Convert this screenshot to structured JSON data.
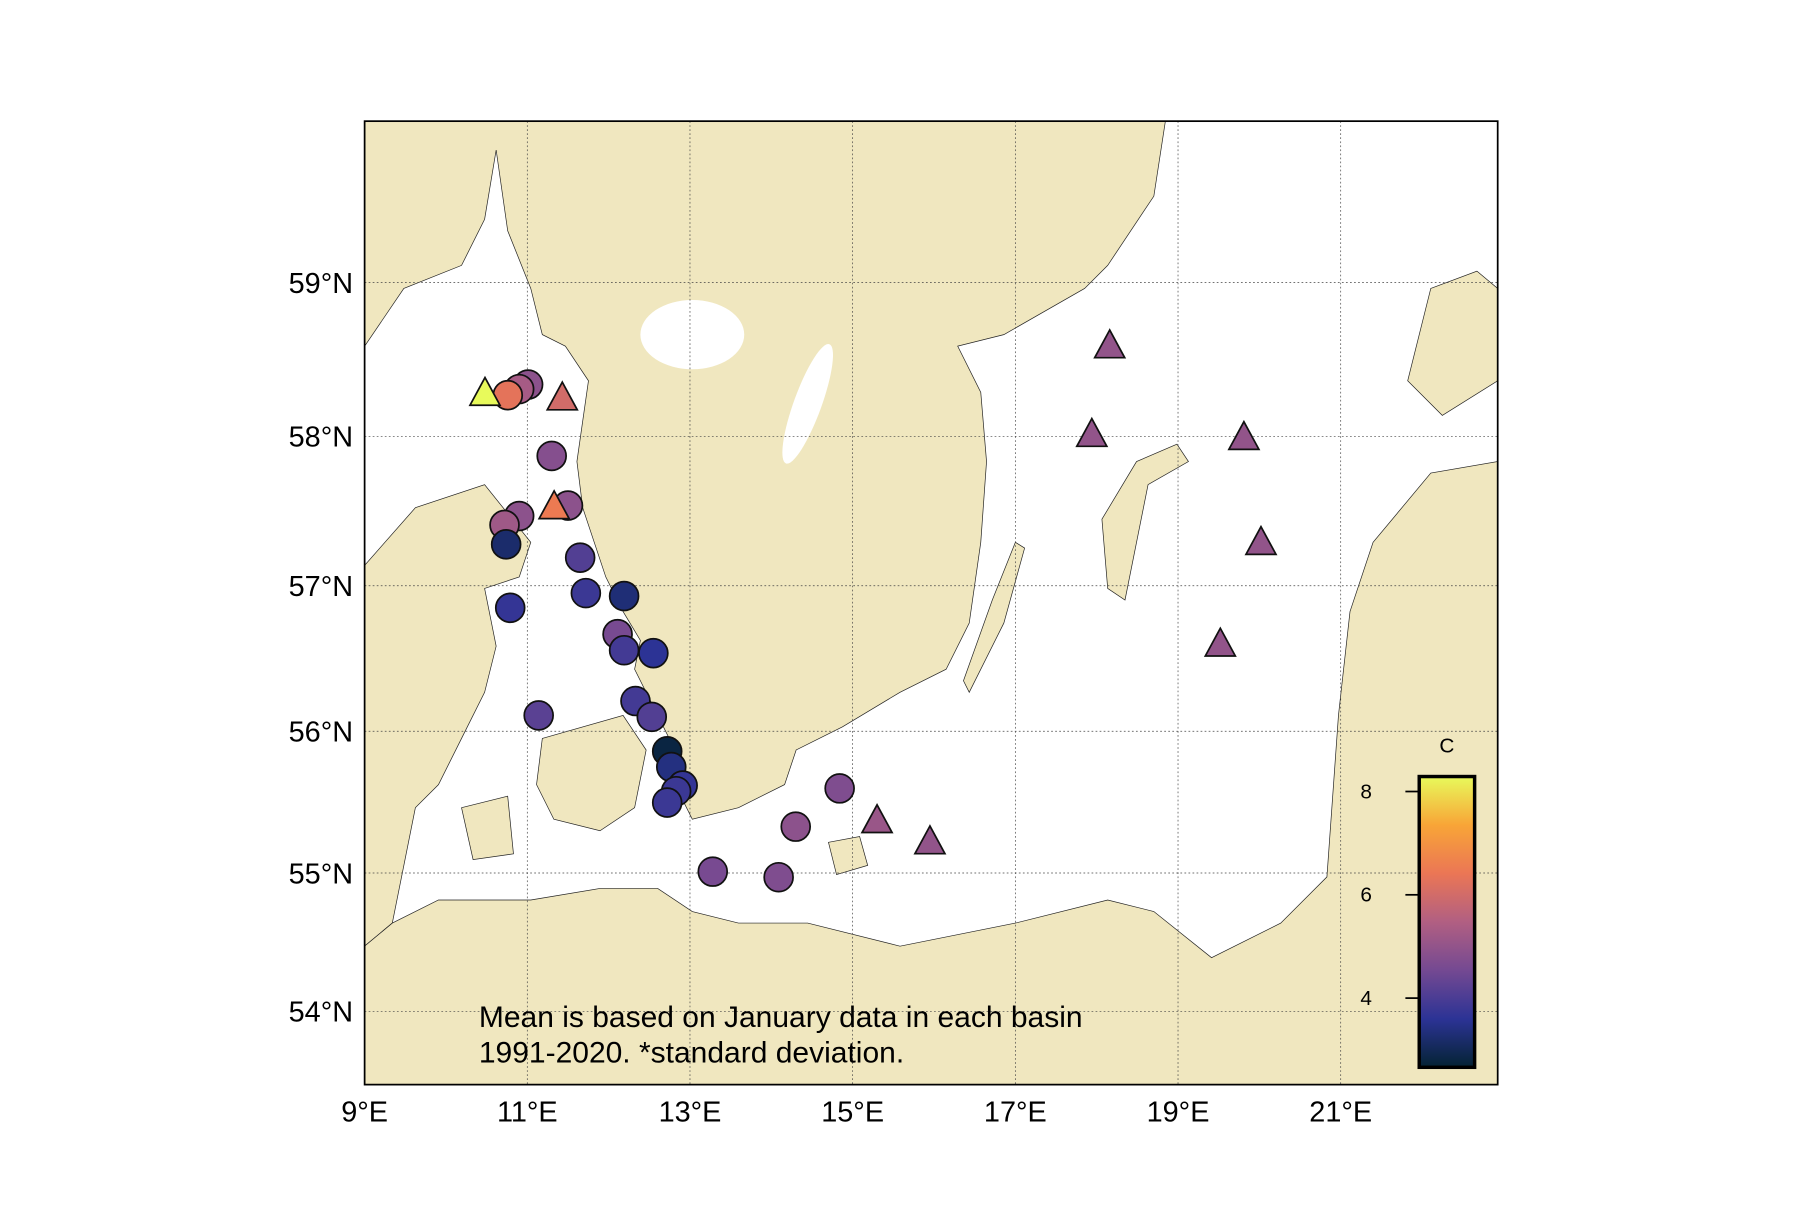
{
  "chart_data": {
    "type": "scatter",
    "projection": "mercator",
    "xlim": [
      9,
      22.93
    ],
    "ylim": [
      53.46,
      60.02
    ],
    "xticks": [
      {
        "value": 9,
        "label": "9°E"
      },
      {
        "value": 11,
        "label": "11°E"
      },
      {
        "value": 13,
        "label": "13°E"
      },
      {
        "value": 15,
        "label": "15°E"
      },
      {
        "value": 17,
        "label": "17°E"
      },
      {
        "value": 19,
        "label": "19°E"
      },
      {
        "value": 21,
        "label": "21°E"
      }
    ],
    "yticks": [
      {
        "value": 54,
        "label": "54°N"
      },
      {
        "value": 55,
        "label": "55°N"
      },
      {
        "value": 56,
        "label": "56°N"
      },
      {
        "value": 57,
        "label": "57°N"
      },
      {
        "value": 58,
        "label": "58°N"
      },
      {
        "value": 59,
        "label": "59°N"
      }
    ],
    "grid": true,
    "land_color": "#f0e7bf",
    "annotation": [
      "Mean is based on January data in each basin",
      "1991-2020. *standard deviation."
    ],
    "colorbar": {
      "label": "C",
      "clim": [
        2.66,
        8.29
      ],
      "ticks": [
        4,
        6,
        8
      ],
      "colormap": [
        "#042333",
        "#2c3395",
        "#744992",
        "#b15f82",
        "#eb7655",
        "#f8a537",
        "#e8fa5b"
      ]
    },
    "series": [
      {
        "marker": "circle",
        "x": [
          11.01,
          10.9,
          10.76,
          11.3,
          11.5,
          10.9,
          10.72,
          10.74,
          11.65,
          10.79,
          11.72,
          12.19,
          12.11,
          12.19,
          12.55,
          12.33,
          12.53,
          11.14,
          12.72,
          12.77,
          12.91,
          12.83,
          12.72,
          14.84,
          14.3,
          13.28,
          14.09
        ],
        "y": [
          58.34,
          58.31,
          58.27,
          57.87,
          57.54,
          57.47,
          57.41,
          57.28,
          57.19,
          56.85,
          56.95,
          56.93,
          56.67,
          56.56,
          56.54,
          56.21,
          56.1,
          56.11,
          55.86,
          55.75,
          55.62,
          55.58,
          55.5,
          55.6,
          55.33,
          55.01,
          54.97
        ],
        "values": [
          4.9,
          5.3,
          6.3,
          4.8,
          4.9,
          4.9,
          5.2,
          3.2,
          4.1,
          3.7,
          3.8,
          3.3,
          4.6,
          3.9,
          3.6,
          3.9,
          4.1,
          4.2,
          2.8,
          3.4,
          3.7,
          3.8,
          3.8,
          4.7,
          4.9,
          4.6,
          4.7
        ]
      },
      {
        "marker": "triangle",
        "x": [
          10.48,
          11.43,
          11.33,
          18.16,
          17.94,
          19.81,
          20.02,
          19.52,
          15.3,
          15.95
        ],
        "y": [
          58.28,
          58.25,
          57.53,
          58.59,
          58.01,
          57.99,
          57.29,
          56.6,
          55.37,
          55.22
        ],
        "values": [
          8.3,
          6.0,
          6.5,
          5.0,
          5.0,
          5.0,
          5.0,
          5.0,
          5.1,
          5.0
        ]
      }
    ]
  }
}
